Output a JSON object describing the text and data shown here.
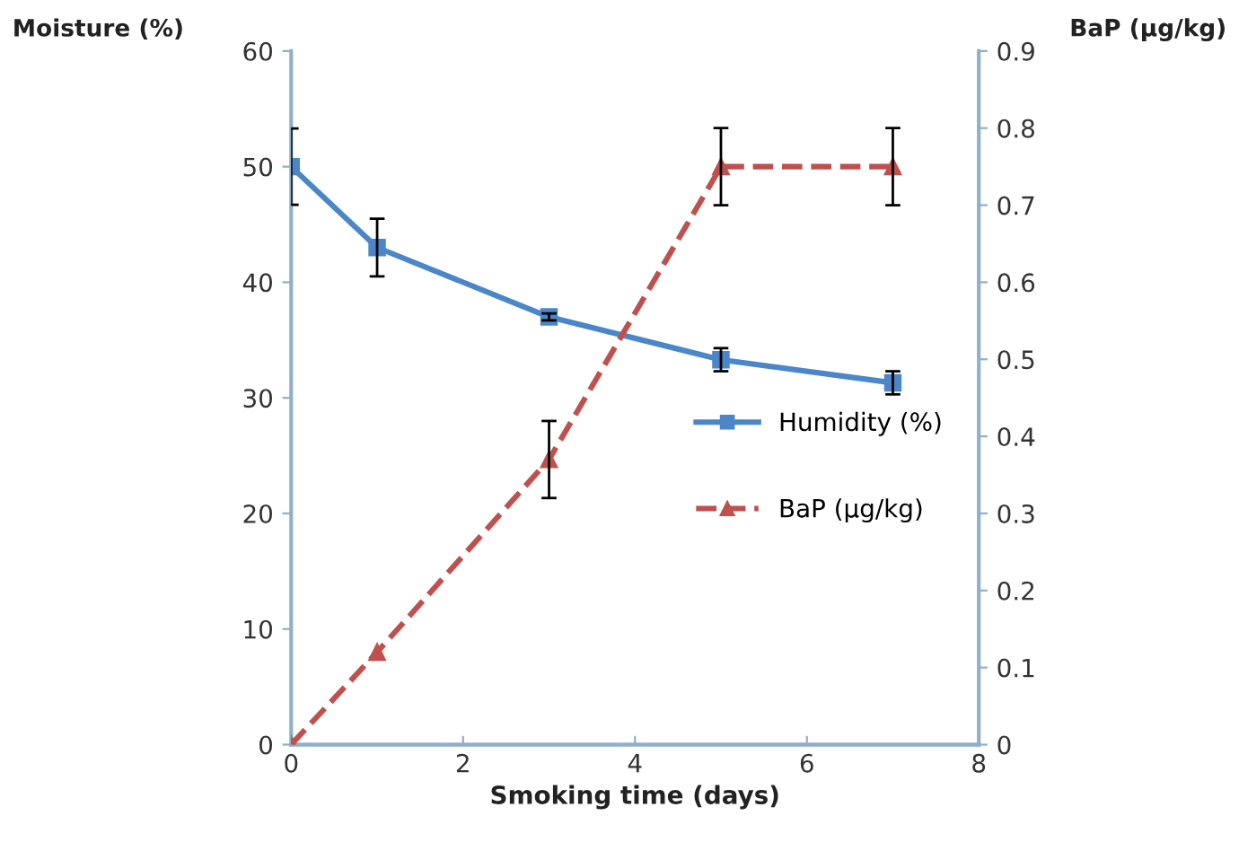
{
  "chart_data": {
    "type": "line",
    "xlabel": "Smoking time (days)",
    "ylabel": "Moisture (%)",
    "y2label": "BaP (µg/kg)",
    "x": [
      0,
      1,
      3,
      5,
      7
    ],
    "xlim": [
      0,
      8
    ],
    "xticks": [
      0,
      2,
      4,
      6,
      8
    ],
    "ylim": [
      0,
      60
    ],
    "yticks": [
      0,
      10,
      20,
      30,
      40,
      50,
      60
    ],
    "y2lim": [
      0,
      0.9
    ],
    "y2ticks": [
      0,
      0.1,
      0.2,
      0.3,
      0.4,
      0.5,
      0.6,
      0.7,
      0.8,
      0.9
    ],
    "legend": "right",
    "grid": false,
    "series": [
      {
        "name": "Humidity (%)",
        "color": "#4a86c8",
        "values": [
          50,
          43,
          37,
          33.3,
          31.3
        ],
        "errors": [
          3.3,
          2.5,
          0.3,
          1,
          1
        ],
        "marker": "square",
        "line_style": "solid"
      },
      {
        "name": "BaP (µg/kg)",
        "color": "#c0504d",
        "axis": "y2",
        "values": [
          0,
          0.12,
          0.37,
          0.75,
          0.75
        ],
        "errors": [
          null,
          null,
          0.05,
          0.05,
          0.05
        ],
        "marker": "triangle",
        "line_style": "dashed"
      }
    ]
  }
}
